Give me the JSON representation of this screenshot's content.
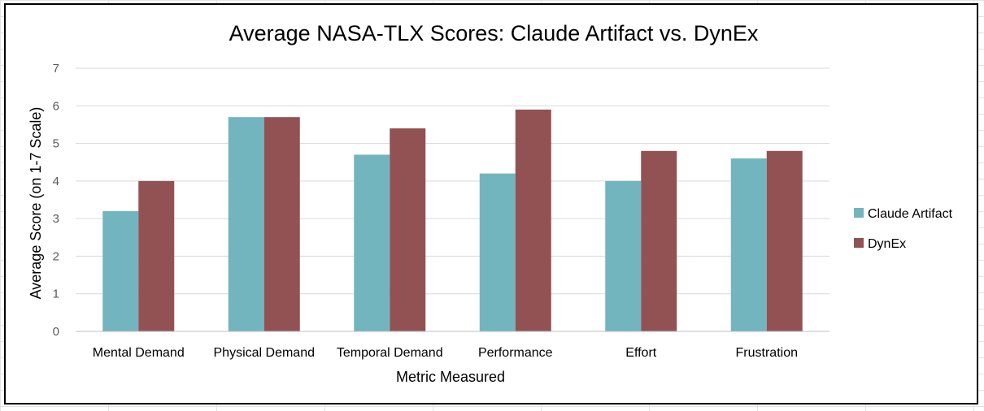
{
  "chart_data": {
    "type": "bar",
    "title": "Average NASA-TLX Scores: Claude Artifact vs. DynEx",
    "xlabel": "Metric Measured",
    "ylabel": "Average Score (on 1-7 Scale)",
    "ylim": [
      0,
      7
    ],
    "yticks": [
      "0",
      "1",
      "2",
      "3",
      "4",
      "5",
      "6",
      "7"
    ],
    "grid": true,
    "legend_position": "right",
    "categories": [
      "Mental Demand",
      "Physical Demand",
      "Temporal Demand",
      "Performance",
      "Effort",
      "Frustration"
    ],
    "series": [
      {
        "name": "Claude Artifact",
        "color": "#72b5bf",
        "values": [
          3.2,
          5.7,
          4.7,
          4.2,
          4.0,
          4.6
        ]
      },
      {
        "name": "DynEx",
        "color": "#925253",
        "values": [
          4.0,
          5.7,
          5.4,
          5.9,
          4.8,
          4.8
        ]
      }
    ]
  }
}
